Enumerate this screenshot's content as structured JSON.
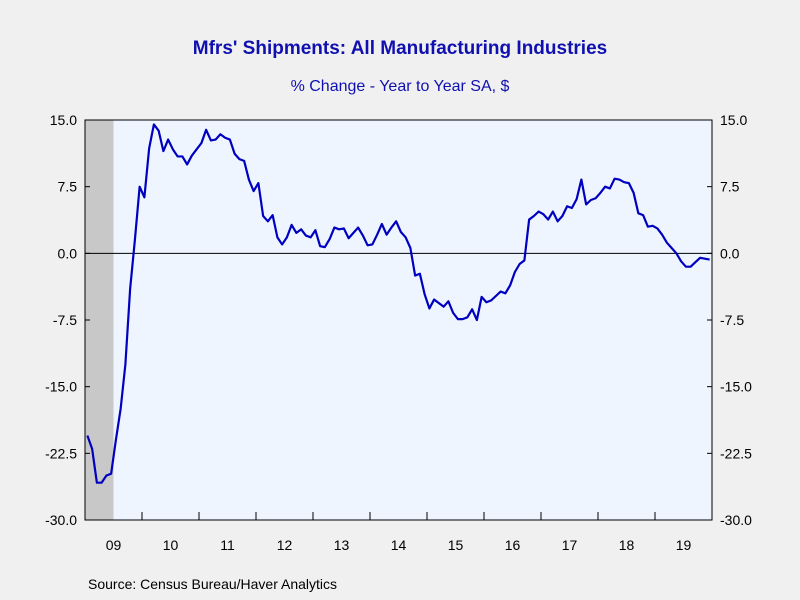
{
  "chart_data": {
    "type": "line",
    "title": "Mfrs' Shipments: All Manufacturing Industries",
    "subtitle": "% Change - Year to Year     SA, $",
    "source": "Source:  Census Bureau/Haver Analytics",
    "ylim": [
      -30,
      15
    ],
    "yticks": [
      "15.0",
      "7.5",
      "0.0",
      "-7.5",
      "-15.0",
      "-22.5",
      "-30.0"
    ],
    "xticks": [
      "09",
      "10",
      "11",
      "12",
      "13",
      "14",
      "15",
      "16",
      "17",
      "18",
      "19"
    ],
    "x_range": [
      "2009-01",
      "2019-12"
    ],
    "grid": false,
    "legend": "none",
    "zero_line": true,
    "recession_shading": {
      "start": "2009-01",
      "end": "2009-06",
      "color": "#c8c8c8"
    },
    "colors": {
      "line": "#0000c0",
      "plot_bg": "#eef5ff",
      "title": "#1010b0"
    },
    "series": [
      {
        "x": [
          "2009-01",
          "2009-02",
          "2009-03",
          "2009-04",
          "2009-05",
          "2009-06",
          "2009-07",
          "2009-08",
          "2009-09",
          "2009-10",
          "2009-11",
          "2009-12",
          "2010-01",
          "2010-02",
          "2010-03",
          "2010-04",
          "2010-05",
          "2010-06",
          "2010-07",
          "2010-08",
          "2010-09",
          "2010-10",
          "2010-11",
          "2010-12",
          "2011-01",
          "2011-02",
          "2011-03",
          "2011-04",
          "2011-05",
          "2011-06",
          "2011-07",
          "2011-08",
          "2011-09",
          "2011-10",
          "2011-11",
          "2011-12",
          "2012-01",
          "2012-02",
          "2012-03",
          "2012-04",
          "2012-05",
          "2012-06",
          "2012-07",
          "2012-08",
          "2012-09",
          "2012-10",
          "2012-11",
          "2012-12",
          "2013-01",
          "2013-02",
          "2013-03",
          "2013-04",
          "2013-05",
          "2013-06",
          "2013-07",
          "2013-08",
          "2013-09",
          "2013-10",
          "2013-11",
          "2013-12",
          "2014-01",
          "2014-02",
          "2014-03",
          "2014-04",
          "2014-05",
          "2014-06",
          "2014-07",
          "2014-08",
          "2014-09",
          "2014-10",
          "2014-11",
          "2014-12",
          "2015-01",
          "2015-02",
          "2015-03",
          "2015-04",
          "2015-05",
          "2015-06",
          "2015-07",
          "2015-08",
          "2015-09",
          "2015-10",
          "2015-11",
          "2015-12",
          "2016-01",
          "2016-02",
          "2016-03",
          "2016-04",
          "2016-05",
          "2016-06",
          "2016-07",
          "2016-08",
          "2016-09",
          "2016-10",
          "2016-11",
          "2016-12",
          "2017-01",
          "2017-02",
          "2017-03",
          "2017-04",
          "2017-05",
          "2017-06",
          "2017-07",
          "2017-08",
          "2017-09",
          "2017-10",
          "2017-11",
          "2017-12",
          "2018-01",
          "2018-02",
          "2018-03",
          "2018-04",
          "2018-05",
          "2018-06",
          "2018-07",
          "2018-08",
          "2018-09",
          "2018-10",
          "2018-11",
          "2018-12",
          "2019-01",
          "2019-02",
          "2019-03",
          "2019-04",
          "2019-05",
          "2019-06",
          "2019-07",
          "2019-08",
          "2019-09",
          "2019-10",
          "2019-11",
          "2019-12"
        ],
        "values": [
          -20.5,
          -22.0,
          -25.8,
          -25.8,
          -25.0,
          -24.8,
          -21.0,
          -17.5,
          -12.5,
          -4.0,
          1.5,
          7.5,
          6.3,
          11.8,
          14.5,
          13.8,
          11.5,
          12.8,
          11.7,
          10.9,
          10.9,
          10.0,
          11.0,
          11.7,
          12.4,
          13.9,
          12.7,
          12.8,
          13.4,
          13.0,
          12.8,
          11.2,
          10.6,
          10.4,
          8.3,
          7.0,
          7.9,
          4.2,
          3.6,
          4.3,
          1.8,
          1.0,
          1.8,
          3.2,
          2.3,
          2.7,
          2.0,
          1.8,
          2.6,
          0.8,
          0.7,
          1.6,
          2.9,
          2.7,
          2.8,
          1.7,
          2.3,
          2.9,
          2.0,
          0.9,
          1.0,
          2.1,
          3.3,
          2.1,
          2.9,
          3.6,
          2.4,
          1.8,
          0.6,
          -2.5,
          -2.3,
          -4.6,
          -6.2,
          -5.2,
          -5.6,
          -6.0,
          -5.4,
          -6.7,
          -7.4,
          -7.4,
          -7.2,
          -6.3,
          -7.5,
          -4.9,
          -5.5,
          -5.3,
          -4.8,
          -4.3,
          -4.5,
          -3.6,
          -2.1,
          -1.2,
          -0.8,
          3.8,
          4.2,
          4.7,
          4.4,
          3.8,
          4.7,
          3.6,
          4.2,
          5.3,
          5.1,
          6.1,
          8.3,
          5.5,
          6.0,
          6.2,
          6.8,
          7.5,
          7.3,
          8.4,
          8.3,
          8.0,
          7.9,
          6.8,
          4.5,
          4.3,
          3.0,
          3.1,
          2.8,
          2.1,
          1.2,
          0.6,
          0.0,
          -0.9,
          -1.5,
          -1.5,
          -1.0,
          -0.5,
          -0.6,
          -0.7
        ]
      }
    ]
  }
}
